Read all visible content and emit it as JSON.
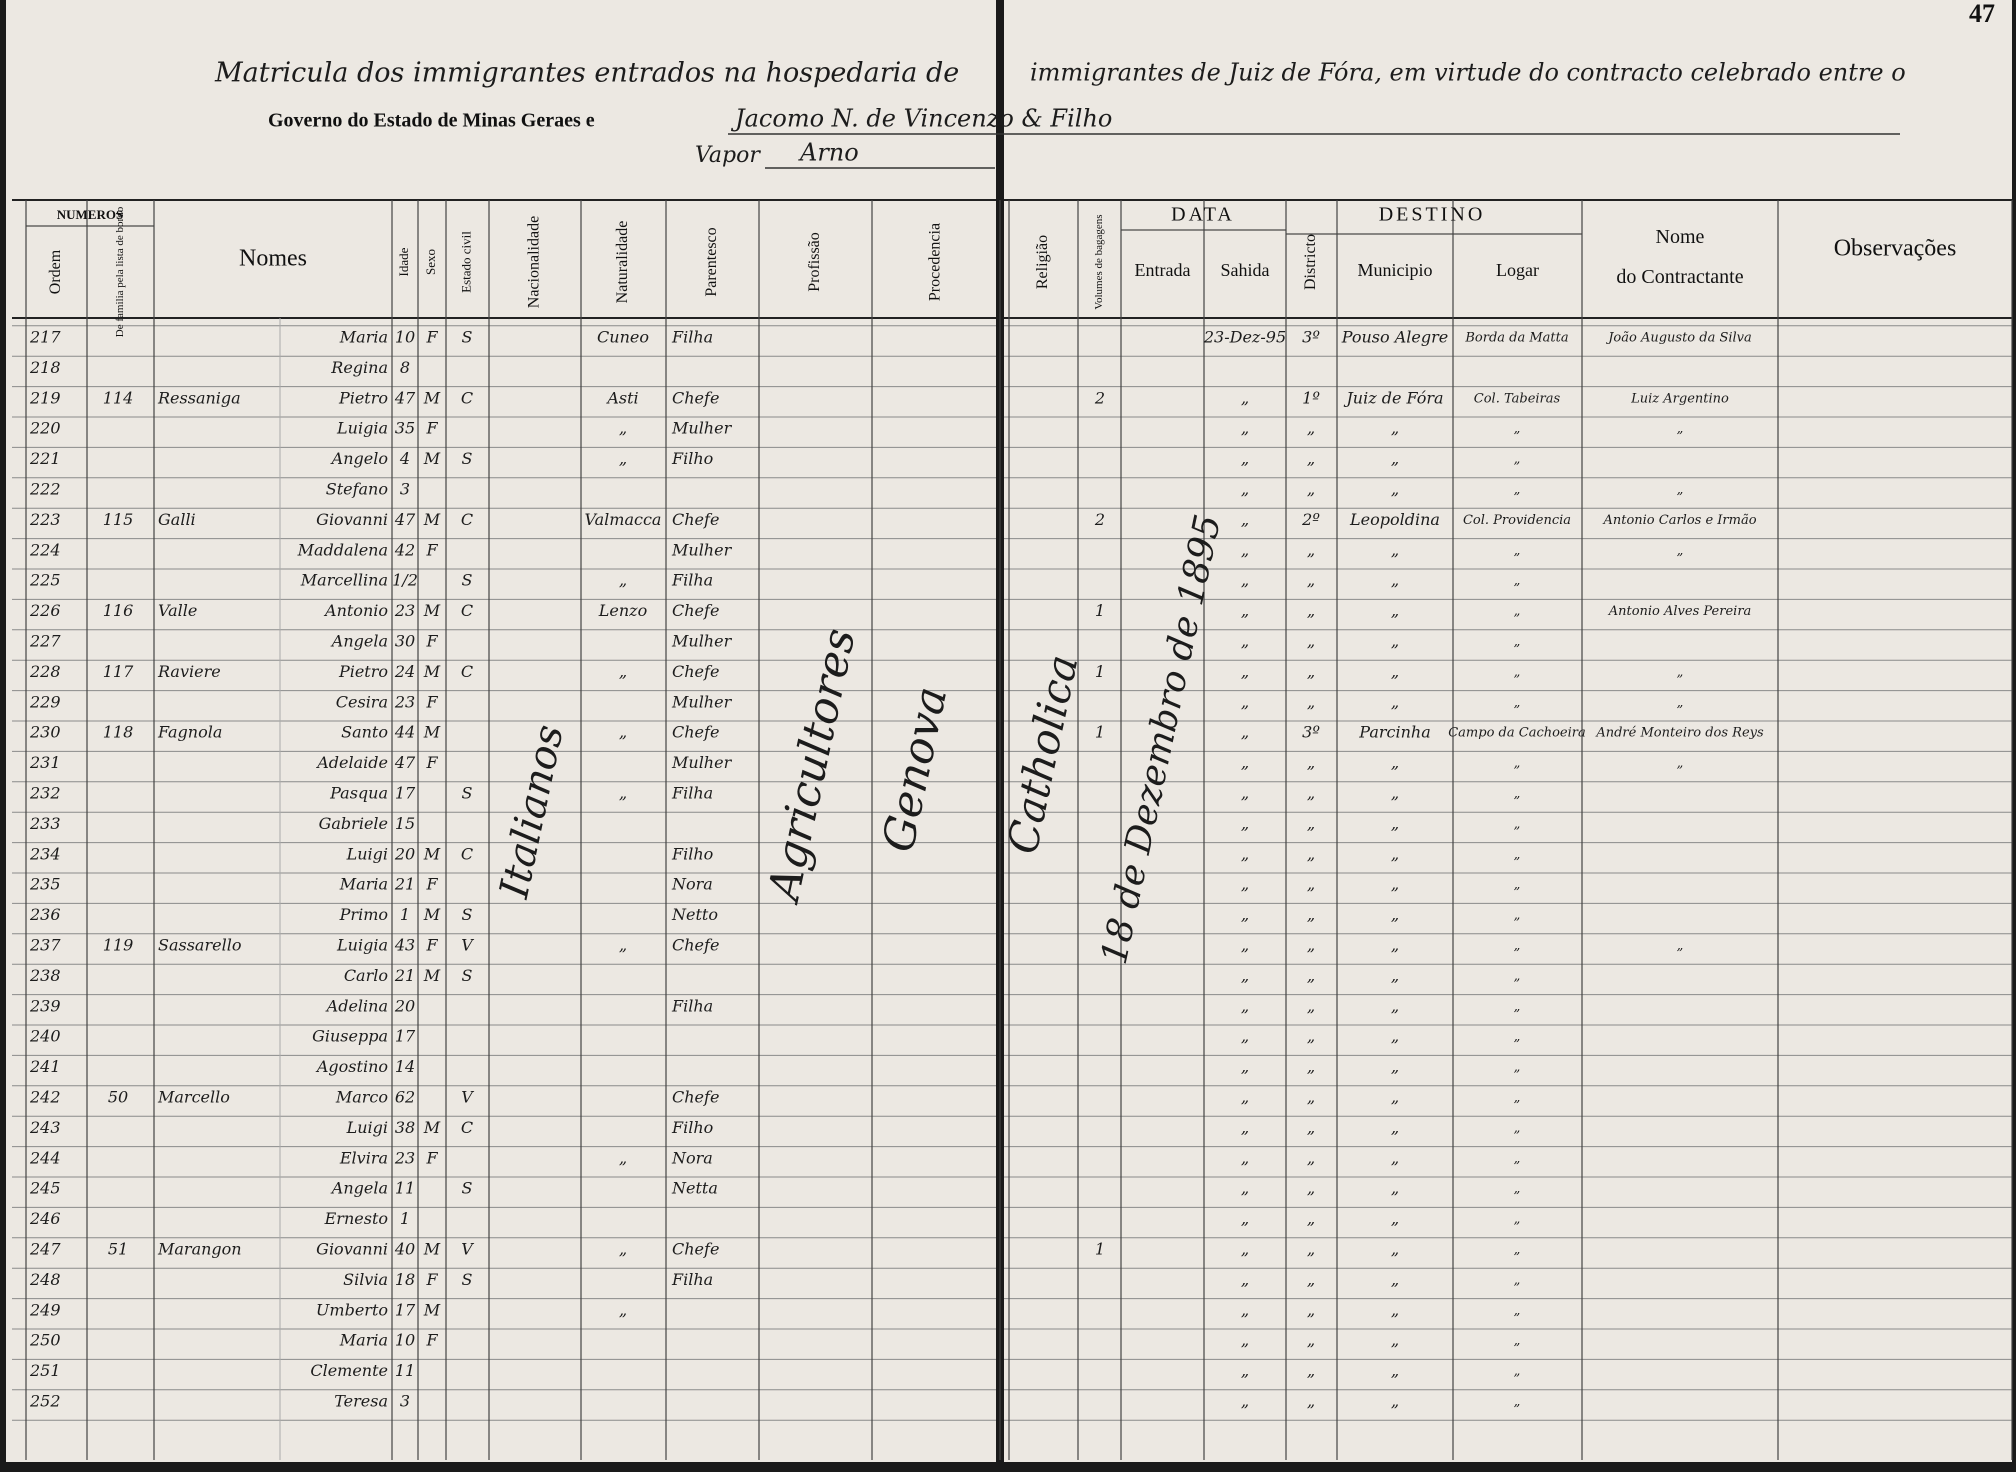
{
  "page_number": "47",
  "header": {
    "line1_left": "Matricula dos immigrantes entrados na hospedaria de",
    "line1_right": "immigrantes de Juiz de Fóra, em virtude do contracto celebrado entre o",
    "line2": "Governo do Estado de Minas Geraes e",
    "contractor": "Jacomo N. de Vincenzo & Filho",
    "vapor_label": "Vapor",
    "vapor_name": "Arno"
  },
  "groups": {
    "numeros": "NUMEROS",
    "data": "DATA",
    "destino": "DESTINO"
  },
  "columns": [
    "Ordem",
    "De familia pela lista de bordo",
    "Nomes",
    "Idade",
    "Sexo",
    "Estado civil",
    "Nacionalidade",
    "Naturalidade",
    "Parentesco",
    "Profissão",
    "Procedencia",
    "Religião",
    "Volumes de bagagens",
    "Entrada",
    "Sahida",
    "Districto",
    "Municipio",
    "Logar",
    "Nome do Contractante",
    "Observações"
  ],
  "spanning": {
    "nacionalidade": "Italianos",
    "profissao": "Agricultores",
    "procedencia": "Genova",
    "religiao": "Catholica",
    "entrada": "18 de Dezembro de 1895"
  },
  "rows": [
    {
      "ordem": "217",
      "nome": "Maria",
      "idade": "10",
      "sexo": "F",
      "civil": "S",
      "natural": "Cuneo",
      "parent": "Filha",
      "sahida": "23-Dez-95",
      "distr": "3º",
      "munic": "Pouso Alegre",
      "logar": "Borda da Matta",
      "contr": "João Augusto da Silva"
    },
    {
      "ordem": "218",
      "nome": "Regina",
      "idade": "8"
    },
    {
      "ordem": "219",
      "fam": "114",
      "sobrenome": "Ressaniga",
      "nome": "Pietro",
      "idade": "47",
      "sexo": "M",
      "civil": "C",
      "natural": "Asti",
      "parent": "Chefe",
      "vol": "2",
      "sahida": "„",
      "distr": "1º",
      "munic": "Juiz de Fóra",
      "logar": "Col. Tabeiras",
      "contr": "Luiz Argentino"
    },
    {
      "ordem": "220",
      "nome": "Luigia",
      "idade": "35",
      "sexo": "F",
      "natural": "„",
      "parent": "Mulher",
      "sahida": "„",
      "distr": "„",
      "munic": "„",
      "logar": "„",
      "contr": "„"
    },
    {
      "ordem": "221",
      "nome": "Angelo",
      "idade": "4",
      "sexo": "M",
      "civil": "S",
      "natural": "„",
      "parent": "Filho",
      "sahida": "„",
      "distr": "„",
      "munic": "„",
      "logar": "„"
    },
    {
      "ordem": "222",
      "nome": "Stefano",
      "idade": "3",
      "sahida": "„",
      "distr": "„",
      "munic": "„",
      "logar": "„",
      "contr": "„"
    },
    {
      "ordem": "223",
      "fam": "115",
      "sobrenome": "Galli",
      "nome": "Giovanni",
      "idade": "47",
      "sexo": "M",
      "civil": "C",
      "natural": "Valmacca",
      "parent": "Chefe",
      "vol": "2",
      "sahida": "„",
      "distr": "2º",
      "munic": "Leopoldina",
      "logar": "Col. Providencia",
      "contr": "Antonio Carlos e Irmão"
    },
    {
      "ordem": "224",
      "nome": "Maddalena",
      "idade": "42",
      "sexo": "F",
      "parent": "Mulher",
      "sahida": "„",
      "distr": "„",
      "munic": "„",
      "logar": "„",
      "contr": "„"
    },
    {
      "ordem": "225",
      "nome": "Marcellina",
      "idade": "1/2",
      "civil": "S",
      "natural": "„",
      "parent": "Filha",
      "sahida": "„",
      "distr": "„",
      "munic": "„",
      "logar": "„"
    },
    {
      "ordem": "226",
      "fam": "116",
      "sobrenome": "Valle",
      "nome": "Antonio",
      "idade": "23",
      "sexo": "M",
      "civil": "C",
      "natural": "Lenzo",
      "parent": "Chefe",
      "vol": "1",
      "sahida": "„",
      "distr": "„",
      "munic": "„",
      "logar": "„",
      "contr": "Antonio Alves Pereira"
    },
    {
      "ordem": "227",
      "nome": "Angela",
      "idade": "30",
      "sexo": "F",
      "parent": "Mulher",
      "sahida": "„",
      "distr": "„",
      "munic": "„",
      "logar": "„"
    },
    {
      "ordem": "228",
      "fam": "117",
      "sobrenome": "Raviere",
      "nome": "Pietro",
      "idade": "24",
      "sexo": "M",
      "civil": "C",
      "natural": "„",
      "parent": "Chefe",
      "vol": "1",
      "sahida": "„",
      "distr": "„",
      "munic": "„",
      "logar": "„",
      "contr": "„"
    },
    {
      "ordem": "229",
      "nome": "Cesira",
      "idade": "23",
      "sexo": "F",
      "parent": "Mulher",
      "sahida": "„",
      "distr": "„",
      "munic": "„",
      "logar": "„",
      "contr": "„"
    },
    {
      "ordem": "230",
      "fam": "118",
      "sobrenome": "Fagnola",
      "nome": "Santo",
      "idade": "44",
      "sexo": "M",
      "natural": "„",
      "parent": "Chefe",
      "vol": "1",
      "sahida": "„",
      "distr": "3º",
      "munic": "Parcinha",
      "logar": "Campo da Cachoeira",
      "contr": "André Monteiro dos Reys"
    },
    {
      "ordem": "231",
      "nome": "Adelaide",
      "idade": "47",
      "sexo": "F",
      "parent": "Mulher",
      "sahida": "„",
      "distr": "„",
      "munic": "„",
      "logar": "„",
      "contr": "„"
    },
    {
      "ordem": "232",
      "nome": "Pasqua",
      "idade": "17",
      "civil": "S",
      "natural": "„",
      "parent": "Filha",
      "sahida": "„",
      "distr": "„",
      "munic": "„",
      "logar": "„"
    },
    {
      "ordem": "233",
      "nome": "Gabriele",
      "idade": "15",
      "sahida": "„",
      "distr": "„",
      "munic": "„",
      "logar": "„"
    },
    {
      "ordem": "234",
      "nome": "Luigi",
      "idade": "20",
      "sexo": "M",
      "civil": "C",
      "parent": "Filho",
      "sahida": "„",
      "distr": "„",
      "munic": "„",
      "logar": "„"
    },
    {
      "ordem": "235",
      "nome": "Maria",
      "idade": "21",
      "sexo": "F",
      "parent": "Nora",
      "sahida": "„",
      "distr": "„",
      "munic": "„",
      "logar": "„"
    },
    {
      "ordem": "236",
      "nome": "Primo",
      "idade": "1",
      "sexo": "M",
      "civil": "S",
      "parent": "Netto",
      "sahida": "„",
      "distr": "„",
      "munic": "„",
      "logar": "„"
    },
    {
      "ordem": "237",
      "fam": "119",
      "sobrenome": "Sassarello",
      "nome": "Luigia",
      "idade": "43",
      "sexo": "F",
      "civil": "V",
      "natural": "„",
      "parent": "Chefe",
      "sahida": "„",
      "distr": "„",
      "munic": "„",
      "logar": "„",
      "contr": "„"
    },
    {
      "ordem": "238",
      "nome": "Carlo",
      "idade": "21",
      "sexo": "M",
      "civil": "S",
      "sahida": "„",
      "distr": "„",
      "munic": "„",
      "logar": "„"
    },
    {
      "ordem": "239",
      "nome": "Adelina",
      "idade": "20",
      "parent": "Filha",
      "sahida": "„",
      "distr": "„",
      "munic": "„",
      "logar": "„"
    },
    {
      "ordem": "240",
      "nome": "Giuseppa",
      "idade": "17",
      "sahida": "„",
      "distr": "„",
      "munic": "„",
      "logar": "„"
    },
    {
      "ordem": "241",
      "nome": "Agostino",
      "idade": "14",
      "sahida": "„",
      "distr": "„",
      "munic": "„",
      "logar": "„"
    },
    {
      "ordem": "242",
      "fam": "50",
      "sobrenome": "Marcello",
      "nome": "Marco",
      "idade": "62",
      "civil": "V",
      "parent": "Chefe",
      "sahida": "„",
      "distr": "„",
      "munic": "„",
      "logar": "„"
    },
    {
      "ordem": "243",
      "nome": "Luigi",
      "idade": "38",
      "sexo": "M",
      "civil": "C",
      "parent": "Filho",
      "sahida": "„",
      "distr": "„",
      "munic": "„",
      "logar": "„"
    },
    {
      "ordem": "244",
      "nome": "Elvira",
      "idade": "23",
      "sexo": "F",
      "natural": "„",
      "parent": "Nora",
      "sahida": "„",
      "distr": "„",
      "munic": "„",
      "logar": "„"
    },
    {
      "ordem": "245",
      "nome": "Angela",
      "idade": "11",
      "civil": "S",
      "parent": "Netta",
      "sahida": "„",
      "distr": "„",
      "munic": "„",
      "logar": "„"
    },
    {
      "ordem": "246",
      "nome": "Ernesto",
      "idade": "1",
      "sahida": "„",
      "distr": "„",
      "munic": "„",
      "logar": "„"
    },
    {
      "ordem": "247",
      "fam": "51",
      "sobrenome": "Marangon",
      "nome": "Giovanni",
      "idade": "40",
      "sexo": "M",
      "civil": "V",
      "natural": "„",
      "parent": "Chefe",
      "vol": "1",
      "sahida": "„",
      "distr": "„",
      "munic": "„",
      "logar": "„"
    },
    {
      "ordem": "248",
      "nome": "Silvia",
      "idade": "18",
      "sexo": "F",
      "civil": "S",
      "parent": "Filha",
      "sahida": "„",
      "distr": "„",
      "munic": "„",
      "logar": "„"
    },
    {
      "ordem": "249",
      "nome": "Umberto",
      "idade": "17",
      "sexo": "M",
      "natural": "„",
      "sahida": "„",
      "distr": "„",
      "munic": "„",
      "logar": "„"
    },
    {
      "ordem": "250",
      "nome": "Maria",
      "idade": "10",
      "sexo": "F",
      "sahida": "„",
      "distr": "„",
      "munic": "„",
      "logar": "„"
    },
    {
      "ordem": "251",
      "nome": "Clemente",
      "idade": "11",
      "sahida": "„",
      "distr": "„",
      "munic": "„",
      "logar": "„"
    },
    {
      "ordem": "252",
      "nome": "Teresa",
      "idade": "3",
      "sahida": "„",
      "distr": "„",
      "munic": "„",
      "logar": "„"
    }
  ]
}
